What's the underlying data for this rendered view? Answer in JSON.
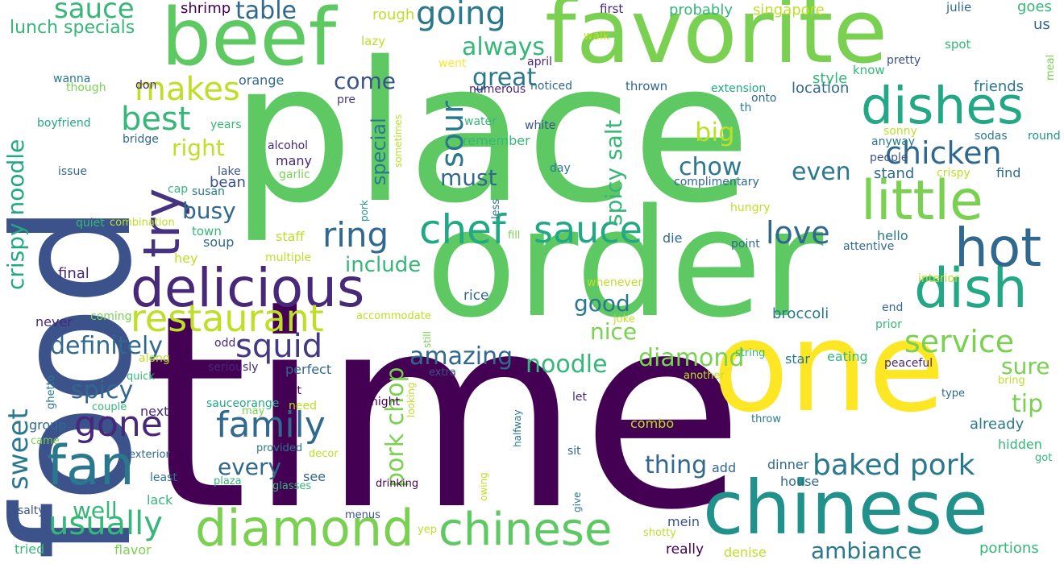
{
  "words": [
    {
      "id": "time",
      "text": "time",
      "color": "#440154"
    },
    {
      "id": "place",
      "text": "place",
      "color": "#5ec962"
    },
    {
      "id": "order",
      "text": "order",
      "color": "#5ec962"
    },
    {
      "id": "food",
      "text": "food",
      "color": "#3b528b"
    },
    {
      "id": "one",
      "text": "one",
      "color": "#fde725"
    },
    {
      "id": "favorite",
      "text": "favorite",
      "color": "#7ad151"
    },
    {
      "id": "beef",
      "text": "beef",
      "color": "#5ec962"
    },
    {
      "id": "chinese-big",
      "text": "chinese",
      "color": "#21918c"
    },
    {
      "id": "chinese-mid",
      "text": "chinese",
      "color": "#5ec962"
    },
    {
      "id": "diamond-big",
      "text": "diamond",
      "color": "#7ad151"
    },
    {
      "id": "delicious",
      "text": "delicious",
      "color": "#482878"
    },
    {
      "id": "dish",
      "text": "dish",
      "color": "#22a884"
    },
    {
      "id": "dishes",
      "text": "dishes",
      "color": "#22a884"
    },
    {
      "id": "little",
      "text": "little",
      "color": "#7ad151"
    },
    {
      "id": "hot",
      "text": "hot",
      "color": "#31688e"
    },
    {
      "id": "fan",
      "text": "fan",
      "color": "#2a788e"
    },
    {
      "id": "try",
      "text": "try",
      "color": "#46327e"
    },
    {
      "id": "chef",
      "text": "chef",
      "color": "#22a884"
    },
    {
      "id": "sauce-mid",
      "text": "sauce",
      "color": "#22a884"
    },
    {
      "id": "restaurant",
      "text": "restaurant",
      "color": "#bddf26"
    },
    {
      "id": "family",
      "text": "family",
      "color": "#31688e"
    },
    {
      "id": "gone",
      "text": "gone",
      "color": "#482878"
    },
    {
      "id": "usually",
      "text": "usually",
      "color": "#35b779"
    },
    {
      "id": "going",
      "text": "going",
      "color": "#2a788e"
    },
    {
      "id": "chicken",
      "text": "chicken",
      "color": "#31688e"
    },
    {
      "id": "service",
      "text": "service",
      "color": "#7ad151"
    },
    {
      "id": "squid",
      "text": "squid",
      "color": "#443983"
    },
    {
      "id": "ring",
      "text": "ring",
      "color": "#31688e"
    },
    {
      "id": "best",
      "text": "best",
      "color": "#35b779"
    },
    {
      "id": "makes",
      "text": "makes",
      "color": "#bddf26"
    },
    {
      "id": "baked-pork",
      "text": "baked pork",
      "color": "#2a788e"
    },
    {
      "id": "love",
      "text": "love",
      "color": "#31688e"
    },
    {
      "id": "sour",
      "text": "sour",
      "color": "#2a788e"
    },
    {
      "id": "sweet",
      "text": "sweet",
      "color": "#2a788e"
    },
    {
      "id": "crispy-noodle",
      "text": "crispy noodle",
      "color": "#22a884"
    },
    {
      "id": "pork-chop",
      "text": "pork chop",
      "color": "#7ad151"
    },
    {
      "id": "diamond-mid",
      "text": "diamond",
      "color": "#7ad151"
    },
    {
      "id": "amazing",
      "text": "amazing",
      "color": "#31688e"
    },
    {
      "id": "noodle",
      "text": "noodle",
      "color": "#35b779"
    },
    {
      "id": "spicy-salt",
      "text": "spicy salt",
      "color": "#35b779"
    },
    {
      "id": "spicy",
      "text": "spicy",
      "color": "#31688e"
    },
    {
      "id": "definitely",
      "text": "definitely",
      "color": "#31688e"
    },
    {
      "id": "sauce-top",
      "text": "sauce",
      "color": "#35b779"
    },
    {
      "id": "table",
      "text": "table",
      "color": "#31688e"
    },
    {
      "id": "chow",
      "text": "chow",
      "color": "#2a788e"
    },
    {
      "id": "big",
      "text": "big",
      "color": "#bddf26"
    },
    {
      "id": "even",
      "text": "even",
      "color": "#2a788e"
    },
    {
      "id": "come",
      "text": "come",
      "color": "#3b528b"
    },
    {
      "id": "great",
      "text": "great",
      "color": "#2a788e"
    },
    {
      "id": "always",
      "text": "always",
      "color": "#35b779"
    },
    {
      "id": "must",
      "text": "must",
      "color": "#31688e"
    },
    {
      "id": "special",
      "text": "special",
      "color": "#2a788e"
    },
    {
      "id": "right",
      "text": "right",
      "color": "#bddf26"
    },
    {
      "id": "busy",
      "text": "busy",
      "color": "#31688e"
    },
    {
      "id": "good",
      "text": "good",
      "color": "#2a788e"
    },
    {
      "id": "nice",
      "text": "nice",
      "color": "#7ad151"
    },
    {
      "id": "include",
      "text": "include",
      "color": "#35b779"
    },
    {
      "id": "thing",
      "text": "thing",
      "color": "#31688e"
    },
    {
      "id": "every",
      "text": "every",
      "color": "#31688e"
    },
    {
      "id": "well",
      "text": "well",
      "color": "#35b779"
    },
    {
      "id": "sure",
      "text": "sure",
      "color": "#7ad151"
    },
    {
      "id": "tip",
      "text": "tip",
      "color": "#7ad151"
    },
    {
      "id": "ambiance",
      "text": "ambiance",
      "color": "#2a788e"
    },
    {
      "id": "lunch-specials",
      "text": "lunch specials",
      "color": "#35b779"
    },
    {
      "id": "shrimp",
      "text": "shrimp",
      "color": "#440154"
    },
    {
      "id": "rough",
      "text": "rough",
      "color": "#bddf26"
    },
    {
      "id": "first",
      "text": "first",
      "color": "#482878"
    },
    {
      "id": "probably",
      "text": "probably",
      "color": "#35b779"
    },
    {
      "id": "singapore",
      "text": "singapore",
      "color": "#bddf26"
    },
    {
      "id": "julie",
      "text": "julie",
      "color": "#31688e"
    },
    {
      "id": "goes",
      "text": "goes",
      "color": "#35b779"
    },
    {
      "id": "us",
      "text": "us",
      "color": "#31688e"
    },
    {
      "id": "lazy",
      "text": "lazy",
      "color": "#bddf26"
    },
    {
      "id": "walk",
      "text": "walk",
      "color": "#bddf26"
    },
    {
      "id": "spot",
      "text": "spot",
      "color": "#35b779"
    },
    {
      "id": "meal",
      "text": "meal",
      "color": "#7ad151"
    },
    {
      "id": "orange",
      "text": "orange",
      "color": "#31688e"
    },
    {
      "id": "went",
      "text": "went",
      "color": "#fde725"
    },
    {
      "id": "april",
      "text": "april",
      "color": "#482878"
    },
    {
      "id": "style",
      "text": "style",
      "color": "#35b779"
    },
    {
      "id": "know",
      "text": "know",
      "color": "#35b779"
    },
    {
      "id": "pretty",
      "text": "pretty",
      "color": "#3b528b"
    },
    {
      "id": "don",
      "text": "don",
      "color": "#482878"
    },
    {
      "id": "wanna",
      "text": "wanna",
      "color": "#2a788e"
    },
    {
      "id": "though",
      "text": "though",
      "color": "#7ad151"
    },
    {
      "id": "numerous",
      "text": "numerous",
      "color": "#482878"
    },
    {
      "id": "noticed",
      "text": "noticed",
      "color": "#31688e"
    },
    {
      "id": "thrown",
      "text": "thrown",
      "color": "#31688e"
    },
    {
      "id": "extension",
      "text": "extension",
      "color": "#22a884"
    },
    {
      "id": "location",
      "text": "location",
      "color": "#31688e"
    },
    {
      "id": "friends",
      "text": "friends",
      "color": "#2a788e"
    },
    {
      "id": "pre",
      "text": "pre",
      "color": "#443983"
    },
    {
      "id": "onto",
      "text": "onto",
      "color": "#31688e"
    },
    {
      "id": "th",
      "text": "th",
      "color": "#2a788e"
    },
    {
      "id": "boyfriend",
      "text": "boyfriend",
      "color": "#22a884"
    },
    {
      "id": "years",
      "text": "years",
      "color": "#35b779"
    },
    {
      "id": "water",
      "text": "water",
      "color": "#35b779"
    },
    {
      "id": "white",
      "text": "white",
      "color": "#3b528b"
    },
    {
      "id": "sonny",
      "text": "sonny",
      "color": "#bddf26"
    },
    {
      "id": "sodas",
      "text": "sodas",
      "color": "#2a788e"
    },
    {
      "id": "round",
      "text": "round",
      "color": "#21918c"
    },
    {
      "id": "bridge",
      "text": "bridge",
      "color": "#31688e"
    },
    {
      "id": "remember",
      "text": "remember",
      "color": "#35b779"
    },
    {
      "id": "anyway",
      "text": "anyway",
      "color": "#2a788e"
    },
    {
      "id": "alcohol",
      "text": "alcohol",
      "color": "#482878"
    },
    {
      "id": "sometimes",
      "text": "sometimes",
      "color": "#bddf26"
    },
    {
      "id": "people",
      "text": "people",
      "color": "#3b528b"
    },
    {
      "id": "issue",
      "text": "issue",
      "color": "#31688e"
    },
    {
      "id": "many",
      "text": "many",
      "color": "#482878"
    },
    {
      "id": "day",
      "text": "day",
      "color": "#2a788e"
    },
    {
      "id": "stand",
      "text": "stand",
      "color": "#31688e"
    },
    {
      "id": "crispy",
      "text": "crispy",
      "color": "#bddf26"
    },
    {
      "id": "find",
      "text": "find",
      "color": "#31688e"
    },
    {
      "id": "lake",
      "text": "lake",
      "color": "#3b528b"
    },
    {
      "id": "garlic",
      "text": "garlic",
      "color": "#7ad151"
    },
    {
      "id": "complimentary",
      "text": "complimentary",
      "color": "#31688e"
    },
    {
      "id": "cap",
      "text": "cap",
      "color": "#35b779"
    },
    {
      "id": "bean",
      "text": "bean",
      "color": "#3b528b"
    },
    {
      "id": "susan",
      "text": "susan",
      "color": "#2a788e"
    },
    {
      "id": "pork",
      "text": "pork",
      "color": "#21918c"
    },
    {
      "id": "less",
      "text": "less",
      "color": "#2a788e"
    },
    {
      "id": "hungry",
      "text": "hungry",
      "color": "#bddf26"
    },
    {
      "id": "quiet",
      "text": "quiet",
      "color": "#35b779"
    },
    {
      "id": "combination",
      "text": "combination",
      "color": "#bddf26"
    },
    {
      "id": "town",
      "text": "town",
      "color": "#35b779"
    },
    {
      "id": "fill",
      "text": "fill",
      "color": "#7ad151"
    },
    {
      "id": "soup",
      "text": "soup",
      "color": "#31688e"
    },
    {
      "id": "staff",
      "text": "staff",
      "color": "#bddf26"
    },
    {
      "id": "die",
      "text": "die",
      "color": "#31688e"
    },
    {
      "id": "point",
      "text": "point",
      "color": "#31688e"
    },
    {
      "id": "attentive",
      "text": "attentive",
      "color": "#31688e"
    },
    {
      "id": "hello",
      "text": "hello",
      "color": "#2a788e"
    },
    {
      "id": "hey",
      "text": "hey",
      "color": "#bddf26"
    },
    {
      "id": "multiple",
      "text": "multiple",
      "color": "#bddf26"
    },
    {
      "id": "final",
      "text": "final",
      "color": "#482878"
    },
    {
      "id": "whenever",
      "text": "whenever",
      "color": "#bddf26"
    },
    {
      "id": "interior",
      "text": "interior",
      "color": "#bddf26"
    },
    {
      "id": "rice",
      "text": "rice",
      "color": "#31688e"
    },
    {
      "id": "broccoli",
      "text": "broccoli",
      "color": "#2a788e"
    },
    {
      "id": "end",
      "text": "end",
      "color": "#31688e"
    },
    {
      "id": "coming",
      "text": "coming",
      "color": "#7ad151"
    },
    {
      "id": "accommodate",
      "text": "accommodate",
      "color": "#bddf26"
    },
    {
      "id": "never",
      "text": "never",
      "color": "#482878"
    },
    {
      "id": "still",
      "text": "still",
      "color": "#7ad151"
    },
    {
      "id": "joke",
      "text": "joke",
      "color": "#bddf26"
    },
    {
      "id": "prior",
      "text": "prior",
      "color": "#35b779"
    },
    {
      "id": "odd",
      "text": "odd",
      "color": "#482878"
    },
    {
      "id": "along",
      "text": "along",
      "color": "#bddf26"
    },
    {
      "id": "seriously",
      "text": "seriously",
      "color": "#482878"
    },
    {
      "id": "perfect",
      "text": "perfect",
      "color": "#31688e"
    },
    {
      "id": "string",
      "text": "string",
      "color": "#35b779"
    },
    {
      "id": "star",
      "text": "star",
      "color": "#2a788e"
    },
    {
      "id": "eating",
      "text": "eating",
      "color": "#35b779"
    },
    {
      "id": "peaceful",
      "text": "peaceful",
      "color": "#482878"
    },
    {
      "id": "quick",
      "text": "quick",
      "color": "#35b779"
    },
    {
      "id": "extra",
      "text": "extra",
      "color": "#3b528b"
    },
    {
      "id": "another",
      "text": "another",
      "color": "#bddf26"
    },
    {
      "id": "bring",
      "text": "bring",
      "color": "#bddf26"
    },
    {
      "id": "seat",
      "text": "seat",
      "color": "#440154"
    },
    {
      "id": "ghetto",
      "text": "ghetto",
      "color": "#2a788e"
    },
    {
      "id": "couple",
      "text": "couple",
      "color": "#35b779"
    },
    {
      "id": "night",
      "text": "night",
      "color": "#440154"
    },
    {
      "id": "looking",
      "text": "looking",
      "color": "#bddf26"
    },
    {
      "id": "let",
      "text": "let",
      "color": "#482878"
    },
    {
      "id": "type",
      "text": "type",
      "color": "#31688e"
    },
    {
      "id": "next",
      "text": "next",
      "color": "#482878"
    },
    {
      "id": "sauceorange",
      "text": "sauceorange",
      "color": "#22a884"
    },
    {
      "id": "may",
      "text": "may",
      "color": "#7ad151"
    },
    {
      "id": "need",
      "text": "need",
      "color": "#bddf26"
    },
    {
      "id": "throw",
      "text": "throw",
      "color": "#2a788e"
    },
    {
      "id": "group",
      "text": "group",
      "color": "#31688e"
    },
    {
      "id": "combo",
      "text": "combo",
      "color": "#bddf26"
    },
    {
      "id": "already",
      "text": "already",
      "color": "#2a788e"
    },
    {
      "id": "came",
      "text": "came",
      "color": "#7ad151"
    },
    {
      "id": "halfway",
      "text": "halfway",
      "color": "#2a788e"
    },
    {
      "id": "hidden",
      "text": "hidden",
      "color": "#35b779"
    },
    {
      "id": "exterior",
      "text": "exterior",
      "color": "#31688e"
    },
    {
      "id": "provided",
      "text": "provided",
      "color": "#2a788e"
    },
    {
      "id": "decor",
      "text": "decor",
      "color": "#bddf26"
    },
    {
      "id": "sit",
      "text": "sit",
      "color": "#31688e"
    },
    {
      "id": "got",
      "text": "got",
      "color": "#35b779"
    },
    {
      "id": "add",
      "text": "add",
      "color": "#31688e"
    },
    {
      "id": "dinner",
      "text": "dinner",
      "color": "#31688e"
    },
    {
      "id": "least",
      "text": "least",
      "color": "#2a788e"
    },
    {
      "id": "plaza",
      "text": "plaza",
      "color": "#35b779"
    },
    {
      "id": "see",
      "text": "see",
      "color": "#31688e"
    },
    {
      "id": "house",
      "text": "house",
      "color": "#31688e"
    },
    {
      "id": "lack",
      "text": "lack",
      "color": "#35b779"
    },
    {
      "id": "glasses",
      "text": "glasses",
      "color": "#35b779"
    },
    {
      "id": "drinking",
      "text": "drinking",
      "color": "#440154"
    },
    {
      "id": "owing",
      "text": "owing",
      "color": "#bddf26"
    },
    {
      "id": "give",
      "text": "give",
      "color": "#2a788e"
    },
    {
      "id": "salty",
      "text": "salty",
      "color": "#3b528b"
    },
    {
      "id": "menus",
      "text": "menus",
      "color": "#3b528b"
    },
    {
      "id": "mein",
      "text": "mein",
      "color": "#3b528b"
    },
    {
      "id": "yep",
      "text": "yep",
      "color": "#bddf26"
    },
    {
      "id": "shotty",
      "text": "shotty",
      "color": "#bddf26"
    },
    {
      "id": "tried",
      "text": "tried",
      "color": "#35b779"
    },
    {
      "id": "flavor",
      "text": "flavor",
      "color": "#7ad151"
    },
    {
      "id": "really",
      "text": "really",
      "color": "#440154"
    },
    {
      "id": "denise",
      "text": "denise",
      "color": "#bddf26"
    },
    {
      "id": "portions",
      "text": "portions",
      "color": "#35b779"
    }
  ]
}
